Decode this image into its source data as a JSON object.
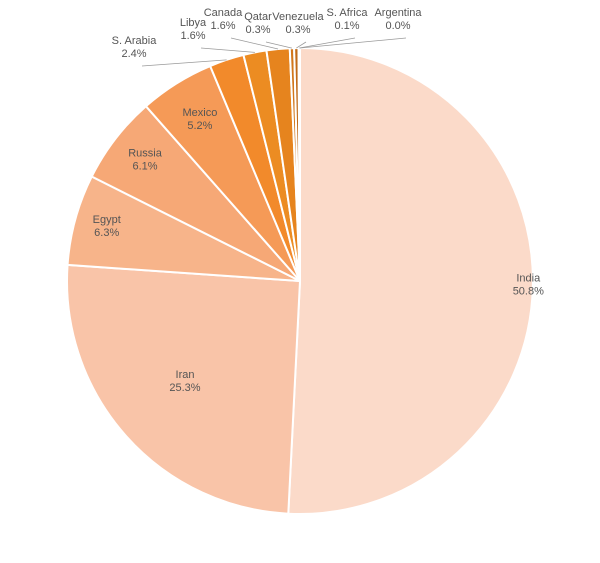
{
  "chart_data": {
    "type": "pie",
    "title": "",
    "start_angle_deg": 0,
    "direction": "clockwise",
    "legend": "none",
    "series": [
      {
        "categories": [
          "India",
          "Iran",
          "Egypt",
          "Russia",
          "Mexico",
          "S. Arabia",
          "Libya",
          "Canada",
          "Qatar",
          "Venezuela",
          "S. Africa",
          "Argentina"
        ],
        "values": [
          50.8,
          25.3,
          6.3,
          6.1,
          5.2,
          2.4,
          1.6,
          1.6,
          0.3,
          0.3,
          0.1,
          0.0
        ],
        "value_labels": [
          "50.8%",
          "25.3%",
          "6.3%",
          "6.1%",
          "5.2%",
          "2.4%",
          "1.6%",
          "1.6%",
          "0.3%",
          "0.3%",
          "0.1%",
          "0.0%"
        ],
        "colors": [
          "#fbdac9",
          "#f9c4a8",
          "#f7b48a",
          "#f6a876",
          "#f59a57",
          "#f28a2b",
          "#ec8c22",
          "#e6841e",
          "#d2771c",
          "#c06a18",
          "#9c5512",
          "#7a430e"
        ]
      }
    ]
  }
}
